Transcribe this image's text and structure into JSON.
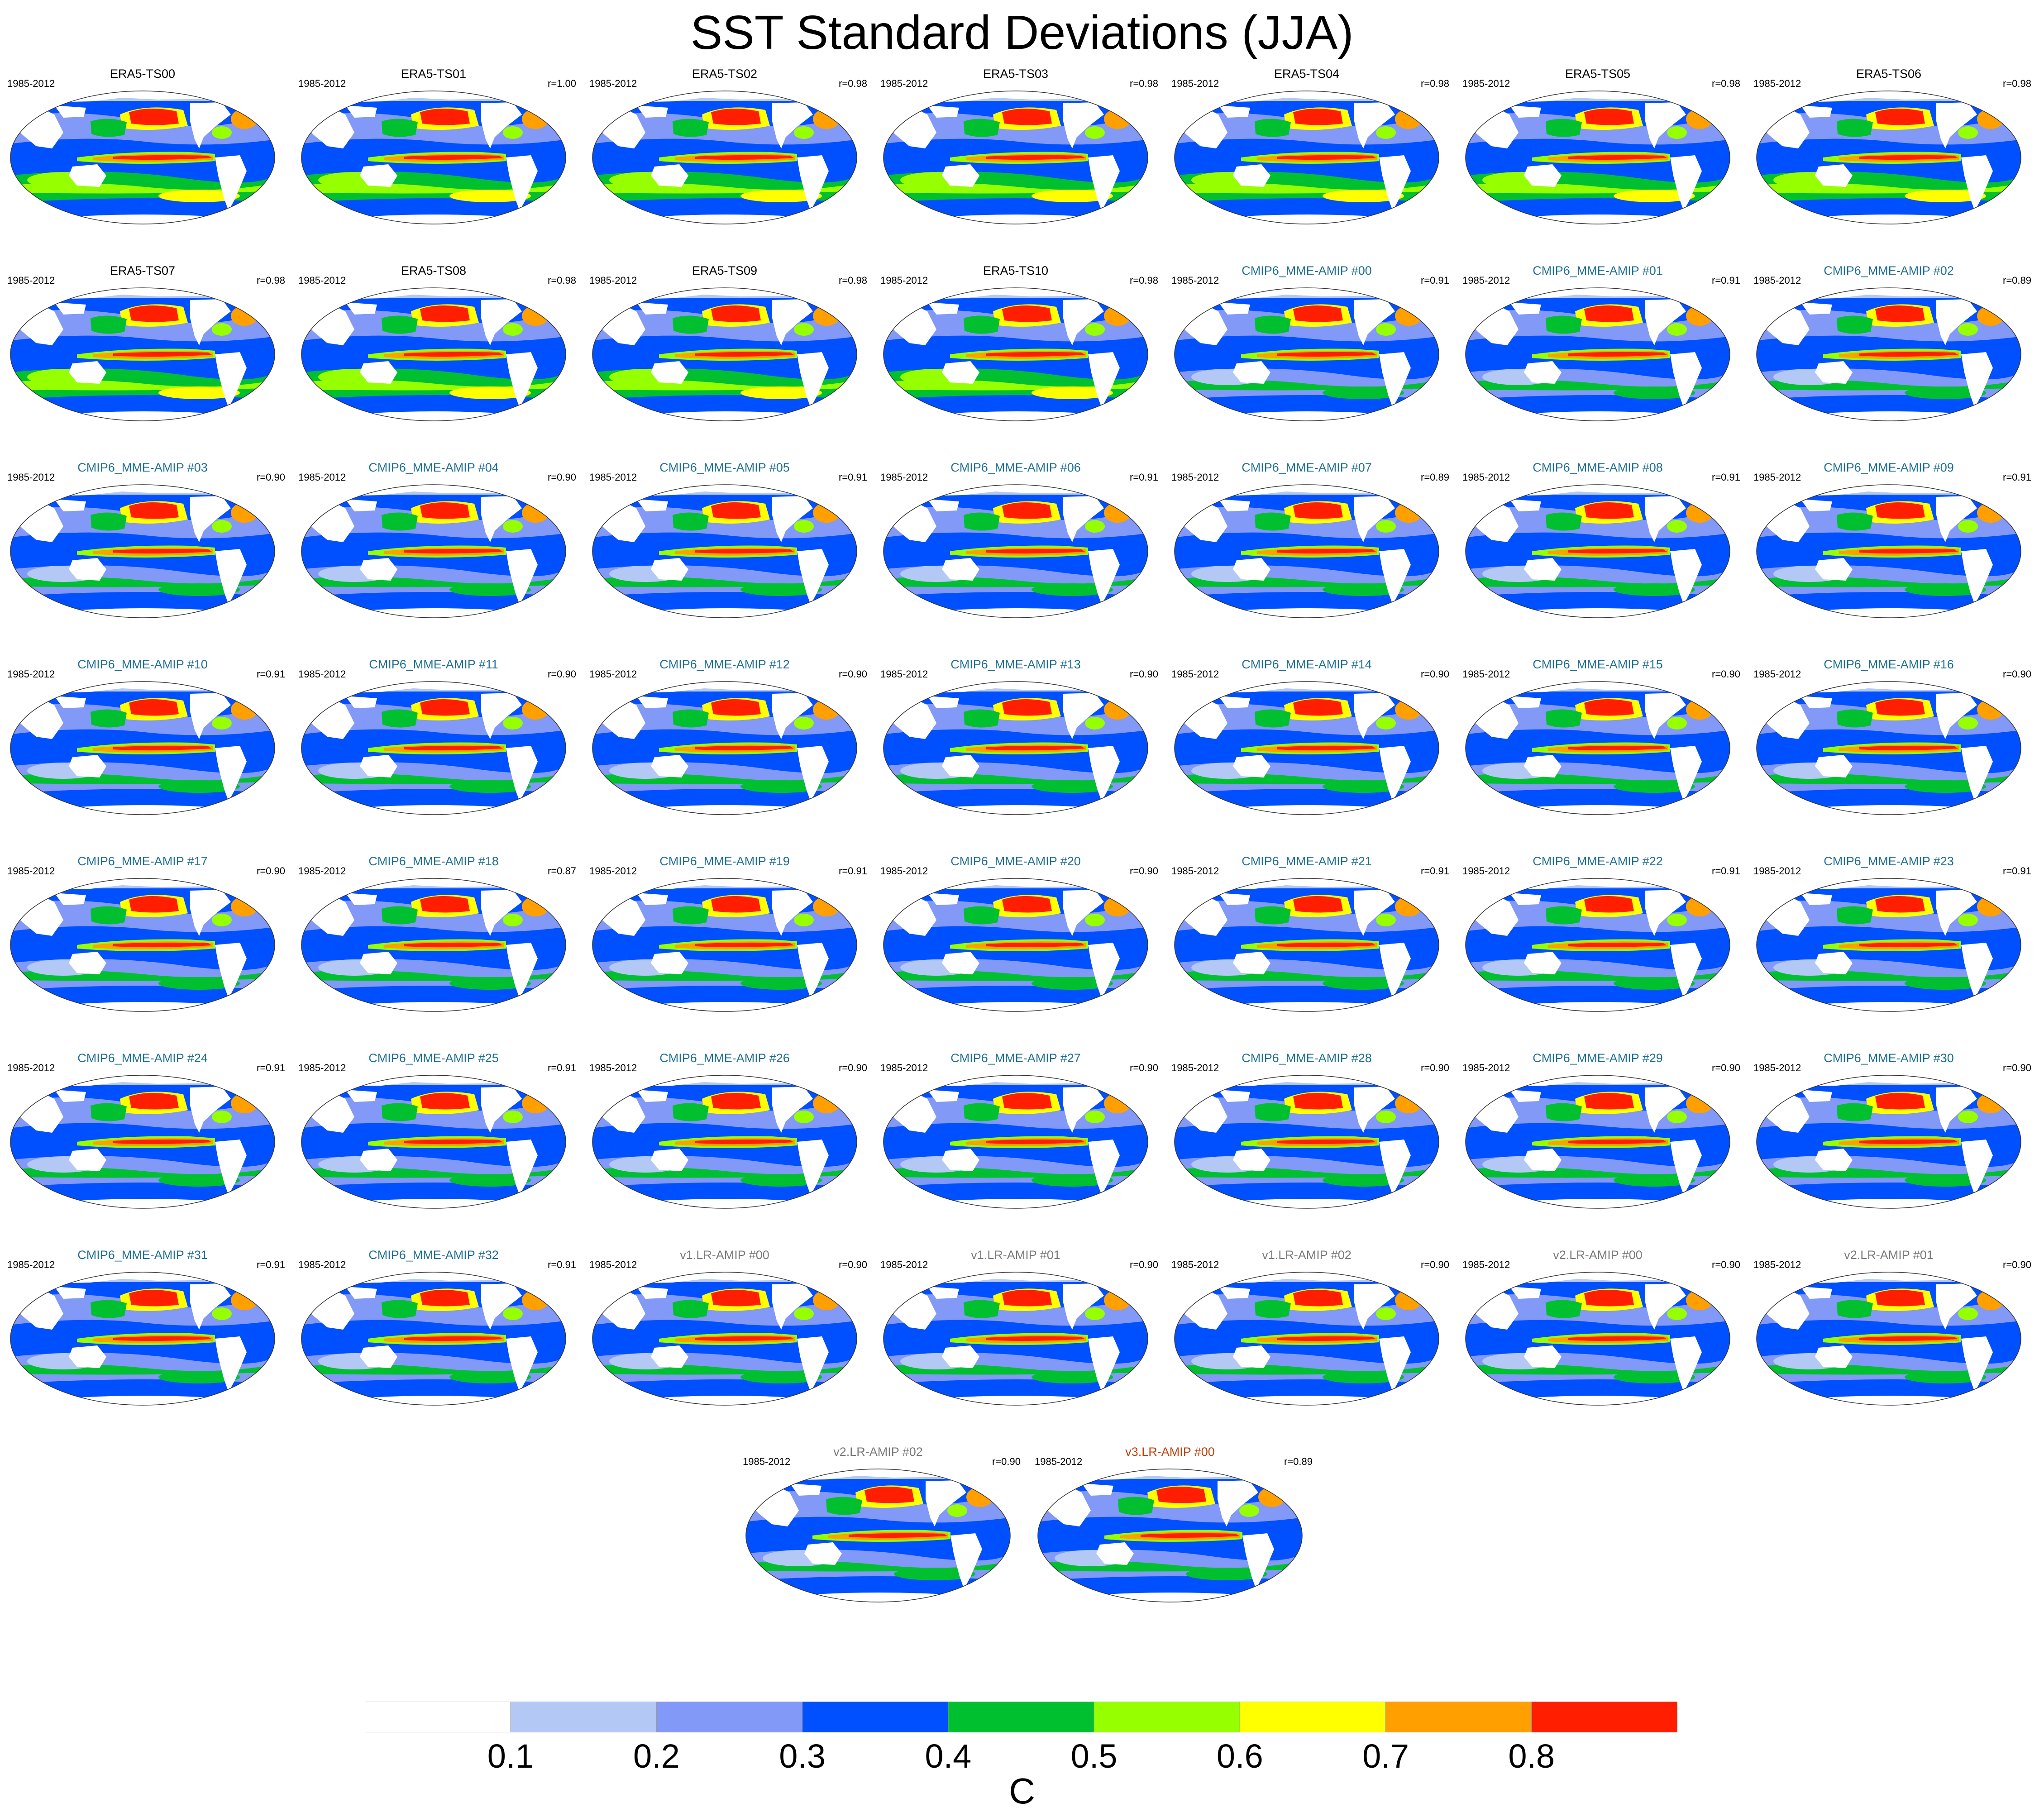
{
  "title": "SST Standard Deviations (JJA)",
  "period": "1985-2012",
  "colors": {
    "obs_title": "#000000",
    "cmip_title": "#1f6f94",
    "v1_title": "#7a7a7a",
    "v2_title": "#7a7a7a",
    "v3_title": "#c2410c"
  },
  "panels": [
    {
      "title": "ERA5-TS00",
      "r": "",
      "group": "obs"
    },
    {
      "title": "ERA5-TS01",
      "r": "r=1.00",
      "group": "obs"
    },
    {
      "title": "ERA5-TS02",
      "r": "r=0.98",
      "group": "obs"
    },
    {
      "title": "ERA5-TS03",
      "r": "r=0.98",
      "group": "obs"
    },
    {
      "title": "ERA5-TS04",
      "r": "r=0.98",
      "group": "obs"
    },
    {
      "title": "ERA5-TS05",
      "r": "r=0.98",
      "group": "obs"
    },
    {
      "title": "ERA5-TS06",
      "r": "r=0.98",
      "group": "obs"
    },
    {
      "title": "ERA5-TS07",
      "r": "r=0.98",
      "group": "obs"
    },
    {
      "title": "ERA5-TS08",
      "r": "r=0.98",
      "group": "obs"
    },
    {
      "title": "ERA5-TS09",
      "r": "r=0.98",
      "group": "obs"
    },
    {
      "title": "ERA5-TS10",
      "r": "r=0.98",
      "group": "obs"
    },
    {
      "title": "CMIP6_MME-AMIP  #00",
      "r": "r=0.91",
      "group": "cmip"
    },
    {
      "title": "CMIP6_MME-AMIP  #01",
      "r": "r=0.91",
      "group": "cmip"
    },
    {
      "title": "CMIP6_MME-AMIP  #02",
      "r": "r=0.89",
      "group": "cmip"
    },
    {
      "title": "CMIP6_MME-AMIP  #03",
      "r": "r=0.90",
      "group": "cmip"
    },
    {
      "title": "CMIP6_MME-AMIP  #04",
      "r": "r=0.90",
      "group": "cmip"
    },
    {
      "title": "CMIP6_MME-AMIP  #05",
      "r": "r=0.91",
      "group": "cmip"
    },
    {
      "title": "CMIP6_MME-AMIP  #06",
      "r": "r=0.91",
      "group": "cmip"
    },
    {
      "title": "CMIP6_MME-AMIP  #07",
      "r": "r=0.89",
      "group": "cmip"
    },
    {
      "title": "CMIP6_MME-AMIP  #08",
      "r": "r=0.91",
      "group": "cmip"
    },
    {
      "title": "CMIP6_MME-AMIP  #09",
      "r": "r=0.91",
      "group": "cmip"
    },
    {
      "title": "CMIP6_MME-AMIP  #10",
      "r": "r=0.91",
      "group": "cmip"
    },
    {
      "title": "CMIP6_MME-AMIP  #11",
      "r": "r=0.90",
      "group": "cmip"
    },
    {
      "title": "CMIP6_MME-AMIP  #12",
      "r": "r=0.90",
      "group": "cmip"
    },
    {
      "title": "CMIP6_MME-AMIP  #13",
      "r": "r=0.90",
      "group": "cmip"
    },
    {
      "title": "CMIP6_MME-AMIP  #14",
      "r": "r=0.90",
      "group": "cmip"
    },
    {
      "title": "CMIP6_MME-AMIP  #15",
      "r": "r=0.90",
      "group": "cmip"
    },
    {
      "title": "CMIP6_MME-AMIP  #16",
      "r": "r=0.90",
      "group": "cmip"
    },
    {
      "title": "CMIP6_MME-AMIP  #17",
      "r": "r=0.90",
      "group": "cmip"
    },
    {
      "title": "CMIP6_MME-AMIP  #18",
      "r": "r=0.87",
      "group": "cmip"
    },
    {
      "title": "CMIP6_MME-AMIP  #19",
      "r": "r=0.91",
      "group": "cmip"
    },
    {
      "title": "CMIP6_MME-AMIP  #20",
      "r": "r=0.90",
      "group": "cmip"
    },
    {
      "title": "CMIP6_MME-AMIP  #21",
      "r": "r=0.91",
      "group": "cmip"
    },
    {
      "title": "CMIP6_MME-AMIP  #22",
      "r": "r=0.91",
      "group": "cmip"
    },
    {
      "title": "CMIP6_MME-AMIP  #23",
      "r": "r=0.91",
      "group": "cmip"
    },
    {
      "title": "CMIP6_MME-AMIP  #24",
      "r": "r=0.91",
      "group": "cmip"
    },
    {
      "title": "CMIP6_MME-AMIP  #25",
      "r": "r=0.91",
      "group": "cmip"
    },
    {
      "title": "CMIP6_MME-AMIP  #26",
      "r": "r=0.90",
      "group": "cmip"
    },
    {
      "title": "CMIP6_MME-AMIP  #27",
      "r": "r=0.90",
      "group": "cmip"
    },
    {
      "title": "CMIP6_MME-AMIP  #28",
      "r": "r=0.90",
      "group": "cmip"
    },
    {
      "title": "CMIP6_MME-AMIP  #29",
      "r": "r=0.90",
      "group": "cmip"
    },
    {
      "title": "CMIP6_MME-AMIP  #30",
      "r": "r=0.90",
      "group": "cmip"
    },
    {
      "title": "CMIP6_MME-AMIP  #31",
      "r": "r=0.91",
      "group": "cmip"
    },
    {
      "title": "CMIP6_MME-AMIP  #32",
      "r": "r=0.91",
      "group": "cmip"
    },
    {
      "title": "v1.LR-AMIP  #00",
      "r": "r=0.90",
      "group": "v1"
    },
    {
      "title": "v1.LR-AMIP  #01",
      "r": "r=0.90",
      "group": "v1"
    },
    {
      "title": "v1.LR-AMIP  #02",
      "r": "r=0.90",
      "group": "v1"
    },
    {
      "title": "v2.LR-AMIP  #00",
      "r": "r=0.90",
      "group": "v2"
    },
    {
      "title": "v2.LR-AMIP  #01",
      "r": "r=0.90",
      "group": "v2"
    },
    {
      "title": "v2.LR-AMIP  #02",
      "r": "r=0.90",
      "group": "v2"
    },
    {
      "title": "v3.LR-AMIP  #00",
      "r": "r=0.89",
      "group": "v3"
    }
  ],
  "colorbar": {
    "colors": [
      "#ffffff",
      "#b4c8f5",
      "#8299f8",
      "#0050ff",
      "#00c030",
      "#96ff00",
      "#ffff00",
      "#ffa000",
      "#ff1e00"
    ],
    "labels": [
      "0.1",
      "0.2",
      "0.3",
      "0.4",
      "0.5",
      "0.6",
      "0.7",
      "0.8"
    ],
    "units": "C"
  }
}
